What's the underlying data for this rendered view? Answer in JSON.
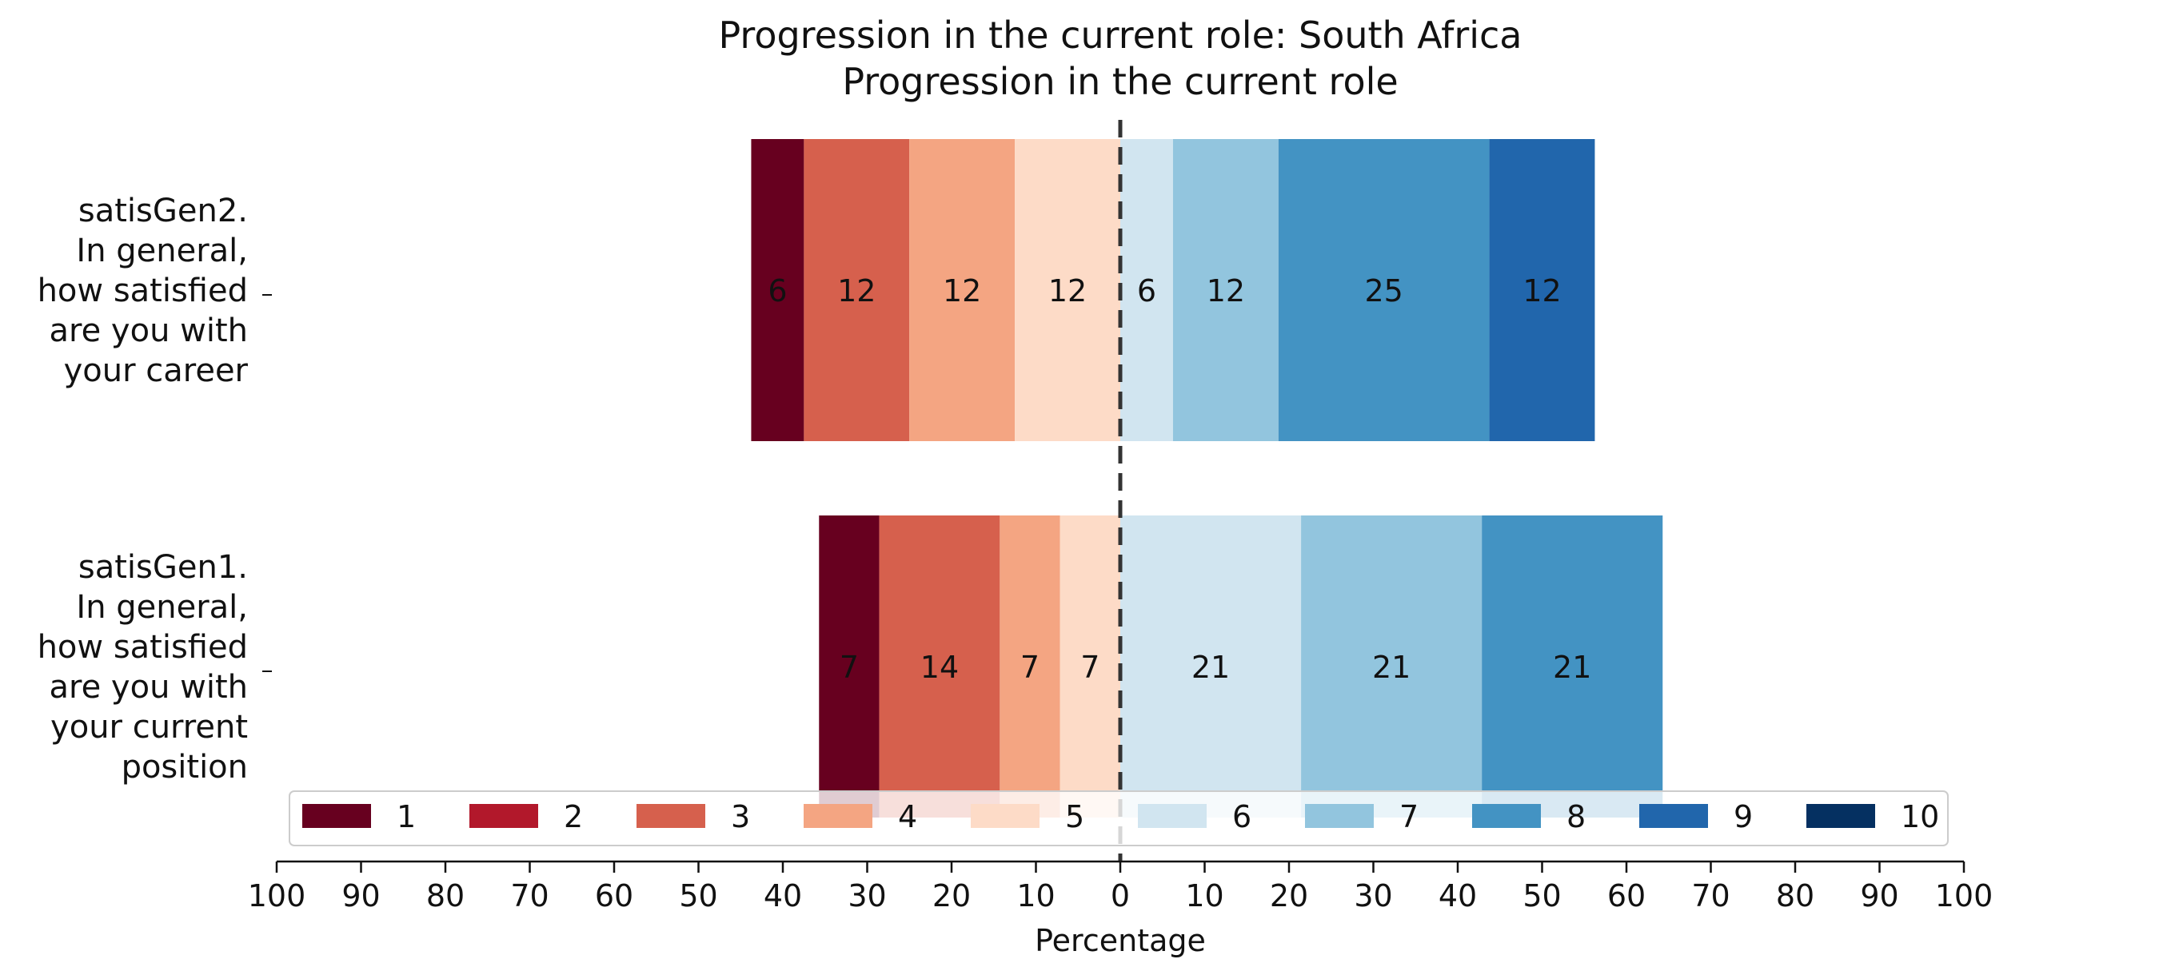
{
  "chart_data": {
    "type": "bar",
    "orientation": "horizontal",
    "stacked": "diverging",
    "title": "Progression in the current role: South Africa",
    "subtitle": "Progression in the current role",
    "xlabel": "Percentage",
    "xlim": [
      -100,
      100
    ],
    "xticks": [
      "100",
      "90",
      "80",
      "70",
      "60",
      "50",
      "40",
      "30",
      "20",
      "10",
      "0",
      "10",
      "20",
      "30",
      "40",
      "50",
      "60",
      "70",
      "80",
      "90",
      "100"
    ],
    "grid": false,
    "legend_position": "bottom-center",
    "categories": [
      "satisGen2.\nIn general,\nhow satisfied\nare you with\nyour career",
      "satisGen1.\nIn general,\nhow satisfied\nare you with\nyour current\nposition"
    ],
    "series": [
      {
        "name": "1",
        "color": "#67001f",
        "values": [
          6.25,
          7.14
        ],
        "labels": [
          "6",
          "7"
        ]
      },
      {
        "name": "2",
        "color": "#b2182b",
        "values": [
          0,
          0
        ],
        "labels": [
          "",
          ""
        ]
      },
      {
        "name": "3",
        "color": "#d6604d",
        "values": [
          12.5,
          14.29
        ],
        "labels": [
          "12",
          "14"
        ]
      },
      {
        "name": "4",
        "color": "#f4a582",
        "values": [
          12.5,
          7.14
        ],
        "labels": [
          "12",
          "7"
        ]
      },
      {
        "name": "5",
        "color": "#fddbc7",
        "values": [
          12.5,
          7.14
        ],
        "labels": [
          "12",
          "7"
        ]
      },
      {
        "name": "6",
        "color": "#d1e5f0",
        "values": [
          6.25,
          21.43
        ],
        "labels": [
          "6",
          "21"
        ]
      },
      {
        "name": "7",
        "color": "#92c5de",
        "values": [
          12.5,
          21.43
        ],
        "labels": [
          "12",
          "21"
        ]
      },
      {
        "name": "8",
        "color": "#4393c3",
        "values": [
          25,
          21.43
        ],
        "labels": [
          "25",
          "21"
        ]
      },
      {
        "name": "9",
        "color": "#2166ac",
        "values": [
          12.5,
          0
        ],
        "labels": [
          "12",
          ""
        ]
      },
      {
        "name": "10",
        "color": "#053061",
        "values": [
          0,
          0
        ],
        "labels": [
          "",
          ""
        ]
      }
    ],
    "neutral_split": "between 5 and 6"
  }
}
